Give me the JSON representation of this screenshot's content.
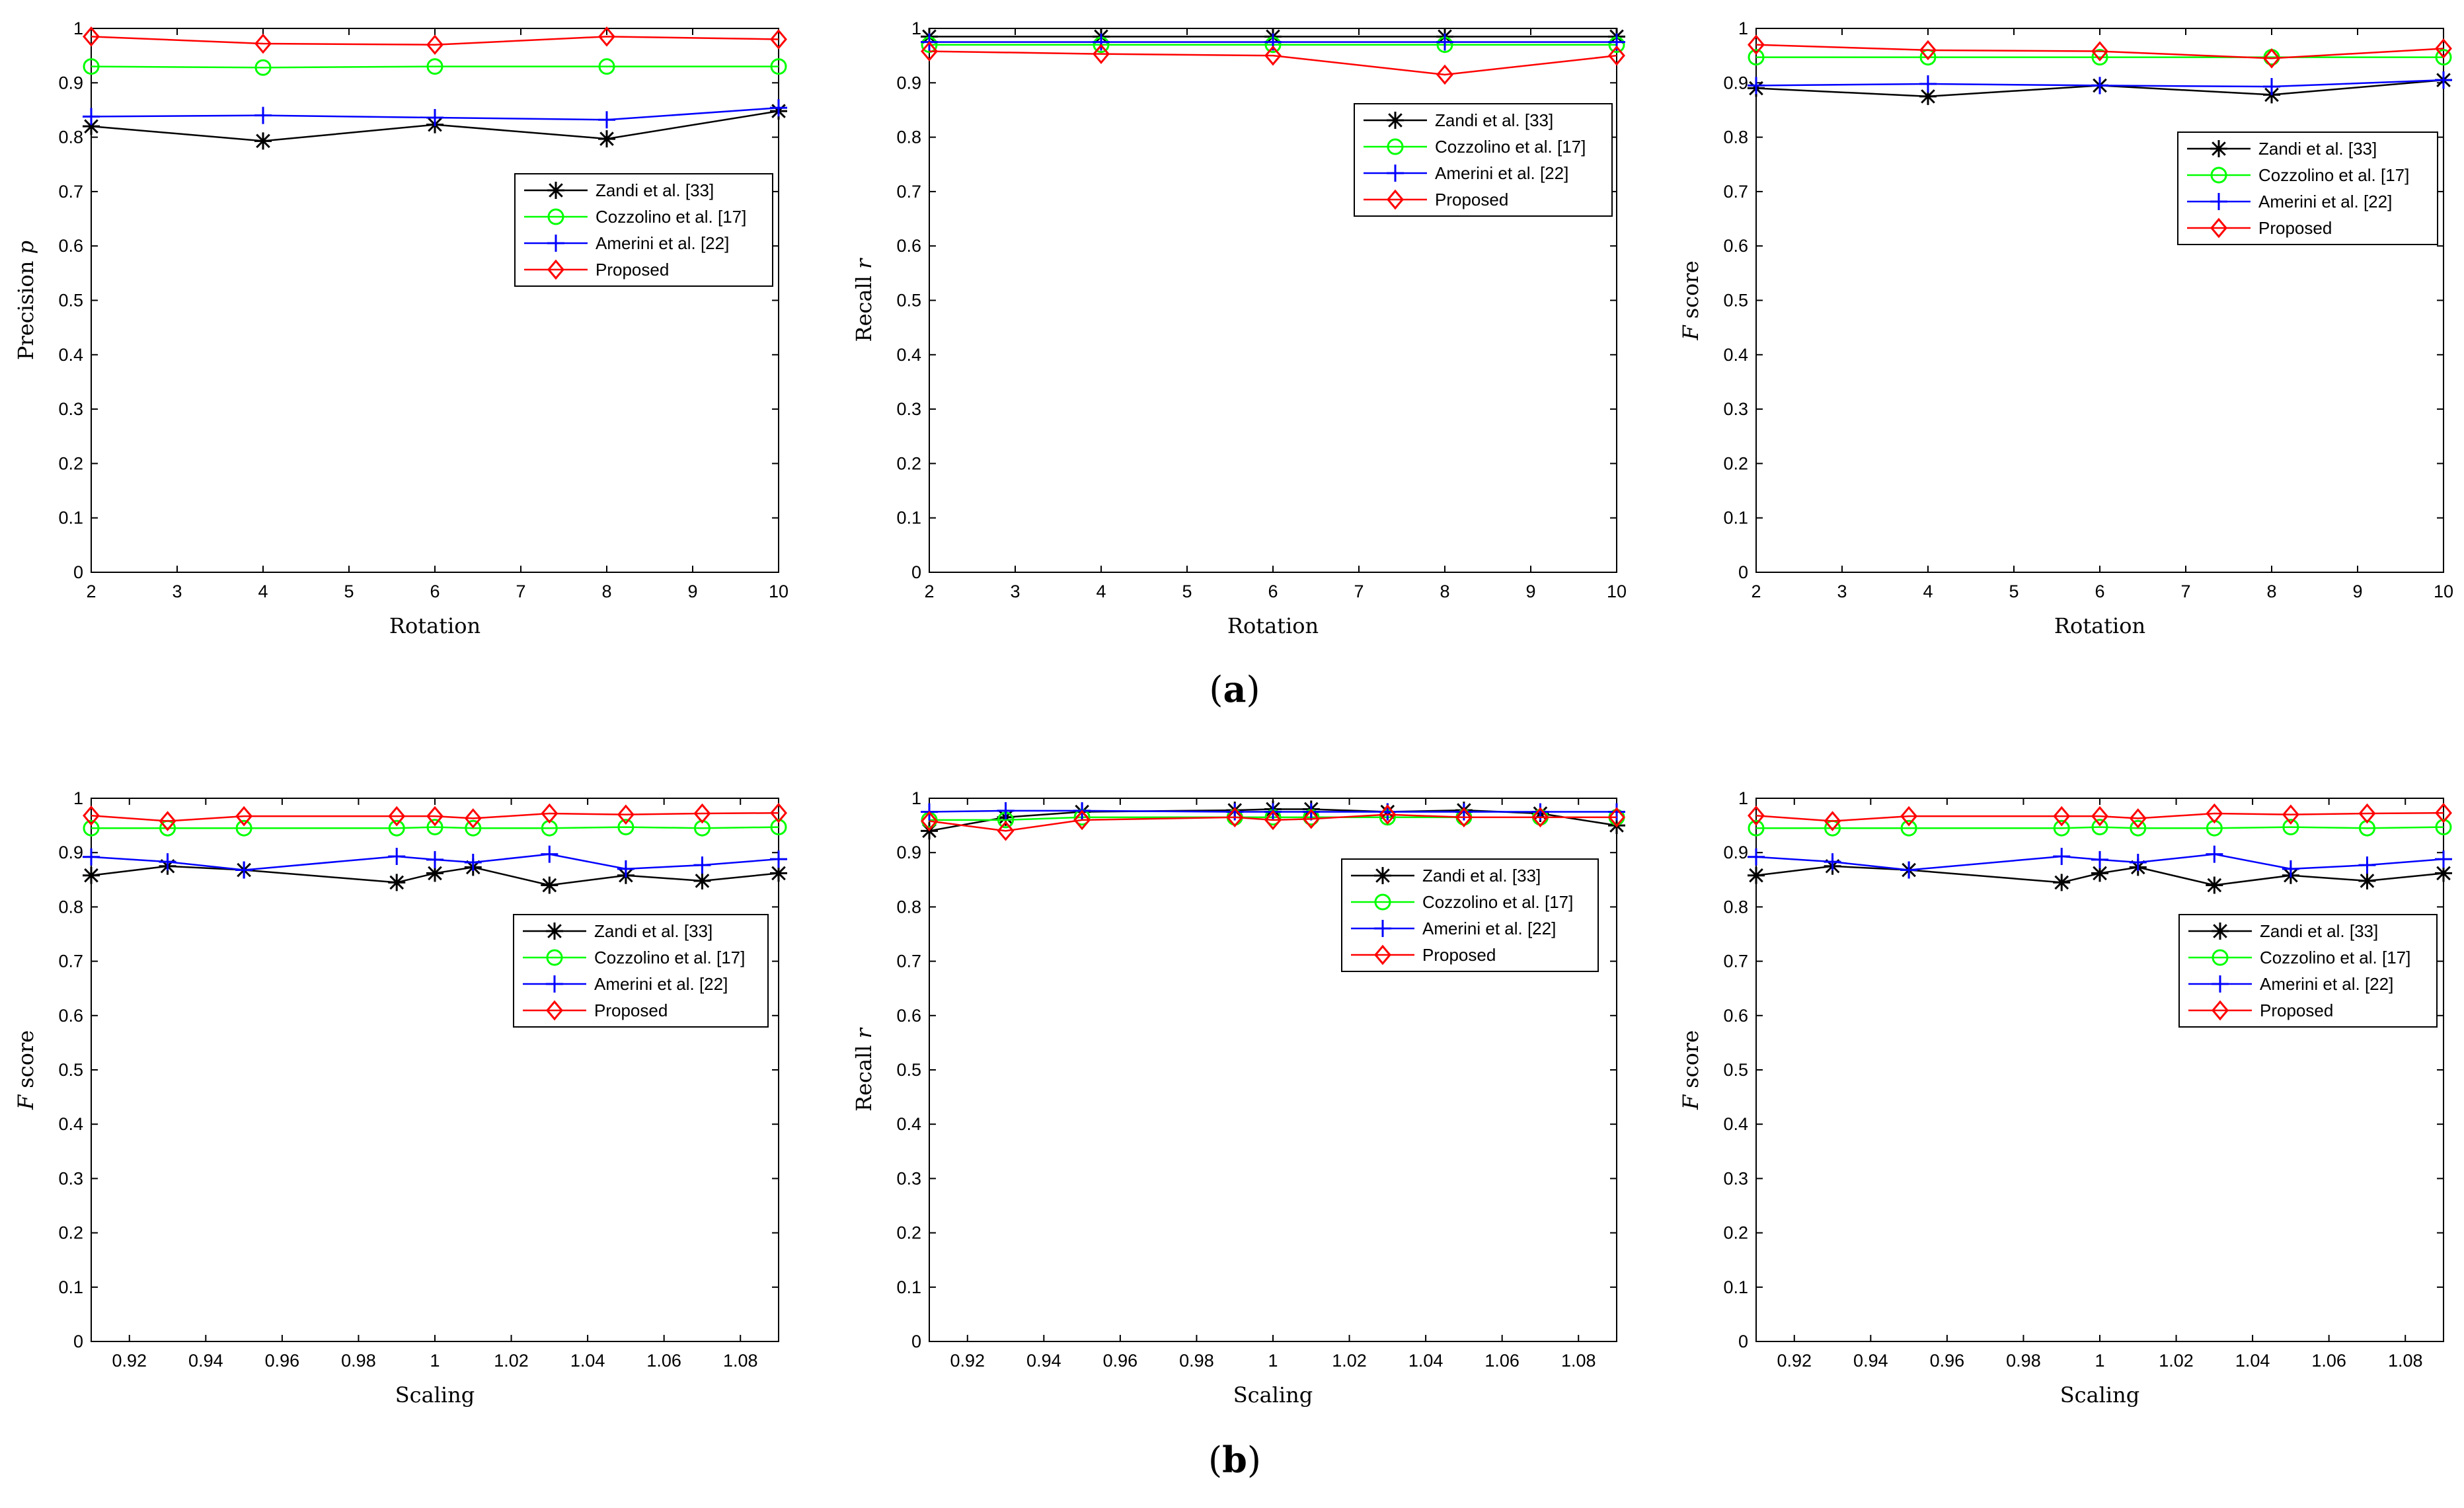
{
  "figure_captions": [
    {
      "pre": "(",
      "label": "a",
      "post": ")"
    },
    {
      "pre": "(",
      "label": "b",
      "post": ")"
    }
  ],
  "colors": {
    "zandi": "#000000",
    "cozzolino": "#00ff00",
    "amerini": "#0000ff",
    "proposed": "#ff0000",
    "axis": "#000000",
    "background": "#ffffff"
  },
  "chart_data": [
    {
      "type": "line",
      "panel": "a-precision",
      "xlabel": "Rotation",
      "ylabel_main": "Precision ",
      "ylabel_var": "p",
      "xlim": [
        2,
        10
      ],
      "ylim": [
        0,
        1
      ],
      "xticks": [
        2,
        3,
        4,
        5,
        6,
        7,
        8,
        9,
        10
      ],
      "xtick_labels": [
        "2",
        "3",
        "4",
        "5",
        "6",
        "7",
        "8",
        "9",
        "10"
      ],
      "yticks": [
        0,
        0.1,
        0.2,
        0.3,
        0.4,
        0.5,
        0.6,
        0.7,
        0.8,
        0.9,
        1
      ],
      "ytick_labels": [
        "0",
        "0.1",
        "0.2",
        "0.3",
        "0.4",
        "0.5",
        "0.6",
        "0.7",
        "0.8",
        "0.9",
        "1"
      ],
      "legend_position": "center-right",
      "x": [
        2,
        4,
        6,
        8,
        10
      ],
      "series": [
        {
          "name": "Zandi et al. [33]",
          "key": "zandi",
          "marker": "star",
          "values": [
            0.82,
            0.793,
            0.823,
            0.797,
            0.848
          ]
        },
        {
          "name": "Cozzolino et al. [17]",
          "key": "cozzolino",
          "marker": "circle",
          "values": [
            0.93,
            0.928,
            0.93,
            0.93,
            0.93
          ]
        },
        {
          "name": "Amerini et al. [22]",
          "key": "amerini",
          "marker": "plus",
          "values": [
            0.838,
            0.84,
            0.836,
            0.832,
            0.854
          ]
        },
        {
          "name": "Proposed",
          "key": "proposed",
          "marker": "diamond",
          "values": [
            0.985,
            0.972,
            0.97,
            0.985,
            0.98
          ]
        }
      ]
    },
    {
      "type": "line",
      "panel": "a-recall",
      "xlabel": "Rotation",
      "ylabel_main": "Recall ",
      "ylabel_var": "r",
      "xlim": [
        2,
        10
      ],
      "ylim": [
        0,
        1
      ],
      "xticks": [
        2,
        3,
        4,
        5,
        6,
        7,
        8,
        9,
        10
      ],
      "xtick_labels": [
        "2",
        "3",
        "4",
        "5",
        "6",
        "7",
        "8",
        "9",
        "10"
      ],
      "yticks": [
        0,
        0.1,
        0.2,
        0.3,
        0.4,
        0.5,
        0.6,
        0.7,
        0.8,
        0.9,
        1
      ],
      "ytick_labels": [
        "0",
        "0.1",
        "0.2",
        "0.3",
        "0.4",
        "0.5",
        "0.6",
        "0.7",
        "0.8",
        "0.9",
        "1"
      ],
      "legend_position": "upper-right",
      "x": [
        2,
        4,
        6,
        8,
        10
      ],
      "series": [
        {
          "name": "Zandi et al. [33]",
          "key": "zandi",
          "marker": "star",
          "values": [
            0.985,
            0.985,
            0.985,
            0.985,
            0.985
          ]
        },
        {
          "name": "Cozzolino et al. [17]",
          "key": "cozzolino",
          "marker": "circle",
          "values": [
            0.97,
            0.97,
            0.97,
            0.97,
            0.97
          ]
        },
        {
          "name": "Amerini et al. [22]",
          "key": "amerini",
          "marker": "plus",
          "values": [
            0.975,
            0.975,
            0.975,
            0.975,
            0.975
          ]
        },
        {
          "name": "Proposed",
          "key": "proposed",
          "marker": "diamond",
          "values": [
            0.958,
            0.953,
            0.95,
            0.915,
            0.95
          ]
        }
      ]
    },
    {
      "type": "line",
      "panel": "a-fscore",
      "xlabel": "Rotation",
      "ylabel_main": " score",
      "ylabel_var": "F",
      "ylabel_var_first": true,
      "xlim": [
        2,
        10
      ],
      "ylim": [
        0,
        1
      ],
      "xticks": [
        2,
        3,
        4,
        5,
        6,
        7,
        8,
        9,
        10
      ],
      "xtick_labels": [
        "2",
        "3",
        "4",
        "5",
        "6",
        "7",
        "8",
        "9",
        "10"
      ],
      "yticks": [
        0,
        0.1,
        0.2,
        0.3,
        0.4,
        0.5,
        0.6,
        0.7,
        0.8,
        0.9,
        1
      ],
      "ytick_labels": [
        "0",
        "0.1",
        "0.2",
        "0.3",
        "0.4",
        "0.5",
        "0.6",
        "0.7",
        "0.8",
        "0.9",
        "1"
      ],
      "legend_position": "upper-right",
      "x": [
        2,
        4,
        6,
        8,
        10
      ],
      "series": [
        {
          "name": "Zandi et al. [33]",
          "key": "zandi",
          "marker": "star",
          "values": [
            0.89,
            0.875,
            0.895,
            0.878,
            0.905
          ]
        },
        {
          "name": "Cozzolino et al. [17]",
          "key": "cozzolino",
          "marker": "circle",
          "values": [
            0.947,
            0.947,
            0.947,
            0.947,
            0.947
          ]
        },
        {
          "name": "Amerini et al. [22]",
          "key": "amerini",
          "marker": "plus",
          "values": [
            0.895,
            0.898,
            0.895,
            0.893,
            0.905
          ]
        },
        {
          "name": "Proposed",
          "key": "proposed",
          "marker": "diamond",
          "values": [
            0.97,
            0.96,
            0.958,
            0.945,
            0.963
          ]
        }
      ]
    },
    {
      "type": "line",
      "panel": "b-fscore-left",
      "xlabel": "Scaling",
      "ylabel_main": " score",
      "ylabel_var": "F",
      "ylabel_var_first": true,
      "xlim": [
        0.91,
        1.09
      ],
      "ylim": [
        0,
        1
      ],
      "xticks": [
        0.92,
        0.94,
        0.96,
        0.98,
        1,
        1.02,
        1.04,
        1.06,
        1.08
      ],
      "xtick_labels": [
        "0.92",
        "0.94",
        "0.96",
        "0.98",
        "1",
        "1.02",
        "1.04",
        "1.06",
        "1.08"
      ],
      "yticks": [
        0,
        0.1,
        0.2,
        0.3,
        0.4,
        0.5,
        0.6,
        0.7,
        0.8,
        0.9,
        1
      ],
      "ytick_labels": [
        "0",
        "0.1",
        "0.2",
        "0.3",
        "0.4",
        "0.5",
        "0.6",
        "0.7",
        "0.8",
        "0.9",
        "1"
      ],
      "legend_position": "center-right",
      "x": [
        0.91,
        0.93,
        0.95,
        0.99,
        1.0,
        1.01,
        1.03,
        1.05,
        1.07,
        1.09
      ],
      "series": [
        {
          "name": "Zandi et al. [33]",
          "key": "zandi",
          "marker": "star",
          "values": [
            0.858,
            0.875,
            0.868,
            0.845,
            0.862,
            0.873,
            0.84,
            0.858,
            0.848,
            0.862
          ]
        },
        {
          "name": "Cozzolino et al. [17]",
          "key": "cozzolino",
          "marker": "circle",
          "values": [
            0.945,
            0.945,
            0.945,
            0.945,
            0.947,
            0.945,
            0.945,
            0.947,
            0.945,
            0.947
          ]
        },
        {
          "name": "Amerini et al. [22]",
          "key": "amerini",
          "marker": "plus",
          "values": [
            0.892,
            0.883,
            0.868,
            0.893,
            0.887,
            0.882,
            0.897,
            0.87,
            0.877,
            0.888
          ]
        },
        {
          "name": "Proposed",
          "key": "proposed",
          "marker": "diamond",
          "values": [
            0.968,
            0.958,
            0.967,
            0.967,
            0.967,
            0.963,
            0.972,
            0.97,
            0.972,
            0.973
          ]
        }
      ]
    },
    {
      "type": "line",
      "panel": "b-recall",
      "xlabel": "Scaling",
      "ylabel_main": "Recall ",
      "ylabel_var": "r",
      "xlim": [
        0.91,
        1.09
      ],
      "ylim": [
        0,
        1
      ],
      "xticks": [
        0.92,
        0.94,
        0.96,
        0.98,
        1,
        1.02,
        1.04,
        1.06,
        1.08
      ],
      "xtick_labels": [
        "0.92",
        "0.94",
        "0.96",
        "0.98",
        "1",
        "1.02",
        "1.04",
        "1.06",
        "1.08"
      ],
      "yticks": [
        0,
        0.1,
        0.2,
        0.3,
        0.4,
        0.5,
        0.6,
        0.7,
        0.8,
        0.9,
        1
      ],
      "ytick_labels": [
        "0",
        "0.1",
        "0.2",
        "0.3",
        "0.4",
        "0.5",
        "0.6",
        "0.7",
        "0.8",
        "0.9",
        "1"
      ],
      "legend_position": "center-right",
      "x": [
        0.91,
        0.93,
        0.95,
        0.99,
        1.0,
        1.01,
        1.03,
        1.05,
        1.07,
        1.09
      ],
      "series": [
        {
          "name": "Zandi et al. [33]",
          "key": "zandi",
          "marker": "star",
          "values": [
            0.94,
            0.965,
            0.975,
            0.978,
            0.98,
            0.98,
            0.975,
            0.978,
            0.972,
            0.95
          ]
        },
        {
          "name": "Cozzolino et al. [17]",
          "key": "cozzolino",
          "marker": "circle",
          "values": [
            0.96,
            0.96,
            0.965,
            0.965,
            0.965,
            0.965,
            0.965,
            0.965,
            0.965,
            0.965
          ]
        },
        {
          "name": "Amerini et al. [22]",
          "key": "amerini",
          "marker": "plus",
          "values": [
            0.975,
            0.977,
            0.977,
            0.975,
            0.975,
            0.975,
            0.975,
            0.975,
            0.975,
            0.975
          ]
        },
        {
          "name": "Proposed",
          "key": "proposed",
          "marker": "diamond",
          "values": [
            0.958,
            0.94,
            0.96,
            0.965,
            0.96,
            0.962,
            0.97,
            0.965,
            0.965,
            0.965
          ]
        }
      ]
    },
    {
      "type": "line",
      "panel": "b-fscore-right",
      "xlabel": "Scaling",
      "ylabel_main": " score",
      "ylabel_var": "F",
      "ylabel_var_first": true,
      "xlim": [
        0.91,
        1.09
      ],
      "ylim": [
        0,
        1
      ],
      "xticks": [
        0.92,
        0.94,
        0.96,
        0.98,
        1,
        1.02,
        1.04,
        1.06,
        1.08
      ],
      "xtick_labels": [
        "0.92",
        "0.94",
        "0.96",
        "0.98",
        "1",
        "1.02",
        "1.04",
        "1.06",
        "1.08"
      ],
      "yticks": [
        0,
        0.1,
        0.2,
        0.3,
        0.4,
        0.5,
        0.6,
        0.7,
        0.8,
        0.9,
        1
      ],
      "ytick_labels": [
        "0",
        "0.1",
        "0.2",
        "0.3",
        "0.4",
        "0.5",
        "0.6",
        "0.7",
        "0.8",
        "0.9",
        "1"
      ],
      "legend_position": "center-right",
      "x": [
        0.91,
        0.93,
        0.95,
        0.99,
        1.0,
        1.01,
        1.03,
        1.05,
        1.07,
        1.09
      ],
      "series": [
        {
          "name": "Zandi et al. [33]",
          "key": "zandi",
          "marker": "star",
          "values": [
            0.858,
            0.875,
            0.868,
            0.845,
            0.862,
            0.873,
            0.84,
            0.858,
            0.848,
            0.862
          ]
        },
        {
          "name": "Cozzolino et al. [17]",
          "key": "cozzolino",
          "marker": "circle",
          "values": [
            0.945,
            0.945,
            0.945,
            0.945,
            0.947,
            0.945,
            0.945,
            0.947,
            0.945,
            0.947
          ]
        },
        {
          "name": "Amerini et al. [22]",
          "key": "amerini",
          "marker": "plus",
          "values": [
            0.892,
            0.883,
            0.868,
            0.893,
            0.887,
            0.882,
            0.897,
            0.87,
            0.877,
            0.888
          ]
        },
        {
          "name": "Proposed",
          "key": "proposed",
          "marker": "diamond",
          "values": [
            0.968,
            0.958,
            0.967,
            0.967,
            0.967,
            0.963,
            0.972,
            0.97,
            0.972,
            0.973
          ]
        }
      ]
    }
  ]
}
